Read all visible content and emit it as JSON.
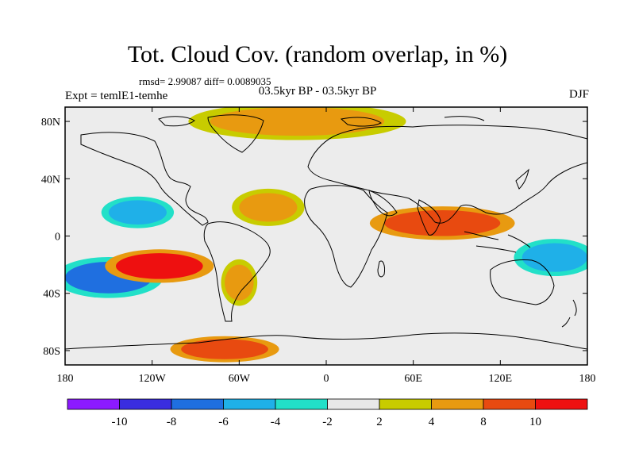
{
  "title": "Tot. Cloud Cov. (random overlap, in %)",
  "subtitle": {
    "stats": "rmsd= 2.99087 diff= 0.0089035",
    "period": "03.5kyr BP - 03.5kyr BP",
    "experiment": "Expt = temlE1-temhe",
    "season": "DJF"
  },
  "axes": {
    "lat_labels": [
      "80N",
      "40N",
      "0",
      "40S",
      "80S"
    ],
    "lat_values": [
      80,
      40,
      0,
      -40,
      -80
    ],
    "lon_labels": [
      "180",
      "120W",
      "60W",
      "0",
      "60E",
      "120E",
      "180"
    ],
    "lon_values": [
      -180,
      -120,
      -60,
      0,
      60,
      120,
      180
    ],
    "lat_range": [
      -90,
      90
    ],
    "lon_range": [
      -180,
      180
    ]
  },
  "colorbar": {
    "colors": [
      "#8c1aff",
      "#3a2de0",
      "#1f6fe0",
      "#1fb0e8",
      "#22e0c8",
      "#e8e8e8",
      "#c8cc00",
      "#e89a10",
      "#e84a10",
      "#ee1010"
    ],
    "tick_labels": [
      "-10",
      "-8",
      "-6",
      "-4",
      "-2",
      "2",
      "4",
      "8",
      "10"
    ]
  },
  "chart_data": {
    "type": "heatmap",
    "title": "Tot. Cloud Cov. (random overlap, in %)",
    "levels": [
      -10,
      -8,
      -6,
      -4,
      -2,
      2,
      4,
      8,
      10
    ],
    "blobs": [
      {
        "region": "central Pacific 20S-40S",
        "lon": [
          -180,
          -120
        ],
        "lat": [
          -18,
          -40
        ],
        "value": -8
      },
      {
        "region": "south Pacific band",
        "lon": [
          -145,
          -85
        ],
        "lat": [
          -12,
          -30
        ],
        "value": 10
      },
      {
        "region": "southern ocean 80S",
        "lon": [
          -100,
          -40
        ],
        "lat": [
          -72,
          -86
        ],
        "value": 8
      },
      {
        "region": "Indian Ocean 0-15N",
        "lon": [
          40,
          120
        ],
        "lat": [
          0,
          18
        ],
        "value": 8
      },
      {
        "region": "north Pacific 20N",
        "lon": [
          -150,
          -110
        ],
        "lat": [
          8,
          25
        ],
        "value": -6
      },
      {
        "region": "west Pacific 15S",
        "lon": [
          135,
          180
        ],
        "lat": [
          -5,
          -25
        ],
        "value": -6
      },
      {
        "region": "north Atlantic 20N",
        "lon": [
          -60,
          -20
        ],
        "lat": [
          10,
          30
        ],
        "value": 4
      },
      {
        "region": "South America 30S",
        "lon": [
          -70,
          -50
        ],
        "lat": [
          -20,
          -45
        ],
        "value": 4
      },
      {
        "region": "Arctic 80N",
        "lon": [
          -80,
          40
        ],
        "lat": [
          70,
          90
        ],
        "value": 4
      }
    ]
  }
}
